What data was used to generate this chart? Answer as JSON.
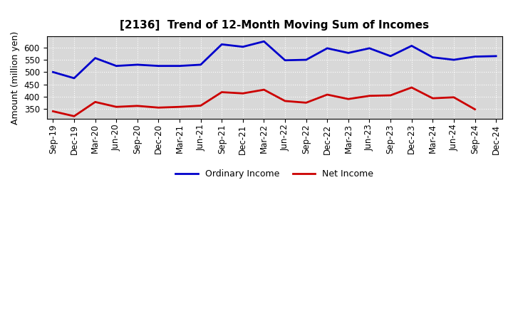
{
  "title": "[2136]  Trend of 12-Month Moving Sum of Incomes",
  "ylabel": "Amount (million yen)",
  "x_labels": [
    "Sep-19",
    "Dec-19",
    "Mar-20",
    "Jun-20",
    "Sep-20",
    "Dec-20",
    "Mar-21",
    "Jun-21",
    "Sep-21",
    "Dec-21",
    "Mar-22",
    "Jun-22",
    "Sep-22",
    "Dec-22",
    "Mar-23",
    "Jun-23",
    "Sep-23",
    "Dec-23",
    "Mar-24",
    "Jun-24",
    "Sep-24",
    "Dec-24"
  ],
  "ordinary_income": [
    500,
    475,
    557,
    525,
    530,
    525,
    525,
    530,
    613,
    603,
    625,
    548,
    550,
    597,
    578,
    597,
    565,
    607,
    560,
    550,
    563,
    565
  ],
  "net_income": [
    340,
    320,
    378,
    358,
    362,
    355,
    358,
    363,
    418,
    413,
    428,
    382,
    375,
    408,
    390,
    403,
    405,
    437,
    393,
    397,
    348,
    null
  ],
  "ylim": [
    310,
    645
  ],
  "yticks": [
    350,
    400,
    450,
    500,
    550,
    600
  ],
  "ordinary_color": "#0000cc",
  "net_color": "#cc0000",
  "bg_color": "#ffffff",
  "plot_bg_color": "#d8d8d8",
  "grid_color": "#ffffff",
  "legend_labels": [
    "Ordinary Income",
    "Net Income"
  ],
  "title_fontsize": 11,
  "label_fontsize": 9,
  "tick_fontsize": 8.5,
  "line_width": 2.0
}
